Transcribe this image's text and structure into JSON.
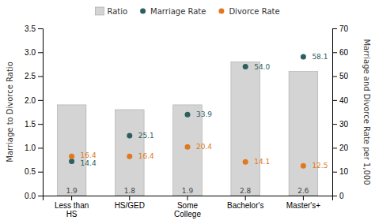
{
  "chart_data": {
    "type": "bar",
    "categories": [
      "Less than\nHS",
      "HS/GED",
      "Some\nCollege",
      "Bachelor's",
      "Master's+"
    ],
    "series": [
      {
        "name": "Ratio",
        "type": "bar",
        "color": "#d4d4d4",
        "values": [
          1.9,
          1.8,
          1.9,
          2.8,
          2.6
        ]
      },
      {
        "name": "Marriage Rate",
        "type": "scatter",
        "marker": "circle",
        "axis": "y2",
        "color": "#2d5f5f",
        "values": [
          14.4,
          25.1,
          33.9,
          54.0,
          58.1
        ],
        "value_labels": [
          "14.4",
          "25.1",
          "33.9",
          "54.0",
          "58.1"
        ]
      },
      {
        "name": "Divorce Rate",
        "type": "scatter",
        "marker": "circle",
        "axis": "y2",
        "color": "#e07820",
        "values": [
          16.4,
          16.4,
          20.4,
          14.1,
          12.5
        ]
      }
    ],
    "ylabel": "Marriage to Divorce Ratio",
    "y2label": "Marriage and Divorce Rate per 1,000",
    "ylim": [
      0,
      3.5
    ],
    "yticks": [
      {
        "value": 0,
        "label": "0.0"
      },
      {
        "value": 0.5,
        "label": "0.5"
      },
      {
        "value": 1.0,
        "label": "1.0"
      },
      {
        "value": 1.5,
        "label": "1.5"
      },
      {
        "value": 2.0,
        "label": "2.0"
      },
      {
        "value": 2.5,
        "label": "2.5"
      },
      {
        "value": 3.0,
        "label": "3.0"
      },
      {
        "value": 3.5,
        "label": "3.5"
      }
    ],
    "y2lim": [
      0,
      70
    ],
    "y2ticks": [
      0,
      10,
      20,
      30,
      40,
      50,
      60,
      70
    ],
    "data_labels": true,
    "legend": "top",
    "grid": false
  }
}
